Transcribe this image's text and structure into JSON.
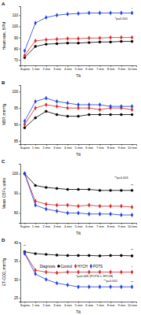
{
  "chart_data": [
    {
      "type": "line",
      "title": "A",
      "y_label": "Heart rate, BPM",
      "x_label": "Tilt",
      "categories": [
        "Supine",
        "1 min",
        "2 min",
        "3 min",
        "4 min",
        "5 min",
        "6 min",
        "7 min",
        "8 min",
        "9 min",
        "10 min"
      ],
      "ylim": [
        65,
        118
      ],
      "yticks": [
        70,
        80,
        90,
        100,
        110
      ],
      "grid": false,
      "series": [
        {
          "color": "#000000",
          "marker": "circle",
          "values": [
            72,
            82,
            84,
            84.5,
            85,
            85,
            85.5,
            86,
            86,
            86.5,
            86.5
          ]
        },
        {
          "color": "#d62728",
          "marker": "diamond",
          "values": [
            74,
            87,
            88,
            88.5,
            89,
            89,
            89.5,
            89.5,
            90,
            90,
            90
          ]
        },
        {
          "color": "#1f3fd6",
          "marker": "diamond",
          "values": [
            78,
            103,
            108,
            110,
            111,
            111.5,
            112,
            112,
            112,
            112,
            112
          ]
        }
      ],
      "annotations": [
        {
          "text": "*",
          "x": 10,
          "y": 114.5
        },
        {
          "text": "*p=0.001",
          "x": 9,
          "y": 106
        }
      ]
    },
    {
      "type": "line",
      "title": "B",
      "y_label": "MBP, mmHg",
      "x_label": "Tilt",
      "categories": [
        "Supine",
        "1 min",
        "2 min",
        "3 min",
        "4 min",
        "5 min",
        "6 min",
        "7 min",
        "8 min",
        "9 min",
        "10 min"
      ],
      "ylim": [
        84,
        102
      ],
      "yticks": [
        85,
        90,
        95,
        100
      ],
      "grid": false,
      "series": [
        {
          "color": "#000000",
          "marker": "circle",
          "values": [
            89,
            92,
            94,
            93,
            92.5,
            92.5,
            93,
            93,
            93,
            93,
            93
          ]
        },
        {
          "color": "#d62728",
          "marker": "diamond",
          "values": [
            90,
            95,
            96,
            95.5,
            95,
            95,
            95,
            94.5,
            95,
            95,
            94.5
          ]
        },
        {
          "color": "#1f3fd6",
          "marker": "diamond",
          "values": [
            91,
            97,
            98,
            97,
            96.5,
            96,
            96,
            96,
            95.5,
            95.5,
            95.5
          ]
        }
      ]
    },
    {
      "type": "line",
      "title": "C",
      "y_label": "Mean CBFv, units",
      "x_label": "Tilt",
      "categories": [
        "Supine",
        "1 min",
        "2 min",
        "3 min",
        "4 min",
        "5 min",
        "6 min",
        "7 min",
        "8 min",
        "9 min",
        "10 min"
      ],
      "ylim": [
        75,
        105
      ],
      "yticks": [
        80,
        90,
        100
      ],
      "grid": false,
      "series": [
        {
          "color": "#000000",
          "marker": "circle",
          "values": [
            100,
            94,
            93,
            92.5,
            92,
            92,
            92,
            91.5,
            91.5,
            91.5,
            91.5
          ]
        },
        {
          "color": "#d62728",
          "marker": "diamond",
          "values": [
            100,
            86,
            84.5,
            84,
            84,
            83.5,
            84,
            83.5,
            83.5,
            83.5,
            83
          ]
        },
        {
          "color": "#1f3fd6",
          "marker": "diamond",
          "values": [
            100,
            84,
            82,
            81,
            80,
            80,
            79.5,
            79.5,
            79.5,
            79,
            79
          ]
        }
      ],
      "annotations": [
        {
          "text": "**p=0.001",
          "x": 9,
          "y": 97.5
        },
        {
          "text": "**",
          "x": 10,
          "y": 93.5
        }
      ]
    },
    {
      "type": "line",
      "title": "D",
      "y_label": "ET-CO2, mmHg",
      "x_label": "Tilt",
      "categories": [
        "Supine",
        "1 min",
        "2 min",
        "3 min",
        "4 min",
        "5 min",
        "6 min",
        "7 min",
        "8 min",
        "9 min",
        "10 min"
      ],
      "ylim": [
        24,
        40
      ],
      "yticks": [
        25,
        30,
        35,
        40
      ],
      "grid": false,
      "legend": "top",
      "legend_title": "Diagnosis",
      "series": [
        {
          "name": "Control",
          "color": "#000000",
          "marker": "circle",
          "values": [
            37.5,
            37,
            36.8,
            36.6,
            36.5,
            36.5,
            36.5,
            36.4,
            36.5,
            36.5,
            36.4
          ]
        },
        {
          "name": "HYCH",
          "color": "#d62728",
          "marker": "diamond",
          "values": [
            37.2,
            32.5,
            32,
            31.8,
            32,
            32,
            32,
            32,
            32,
            32,
            32
          ]
        },
        {
          "name": "POTS",
          "color": "#1f3fd6",
          "marker": "diamond",
          "values": [
            37,
            31.5,
            30,
            29,
            28.5,
            28,
            28,
            28,
            28,
            28,
            28
          ]
        }
      ],
      "annotations": [
        {
          "text": "**",
          "x": 0,
          "y": 38.8
        },
        {
          "text": "*p=0.009 (POTS v. HYCH)",
          "x": 6.5,
          "y": 30.6
        },
        {
          "text": "**p=0.001",
          "x": 8,
          "y": 29.4
        },
        {
          "text": "**",
          "x": 10,
          "y": 37.6
        },
        {
          "text": "*",
          "x": 10,
          "y": 32.9
        },
        {
          "text": "**",
          "x": 10,
          "y": 28.9
        }
      ]
    }
  ]
}
